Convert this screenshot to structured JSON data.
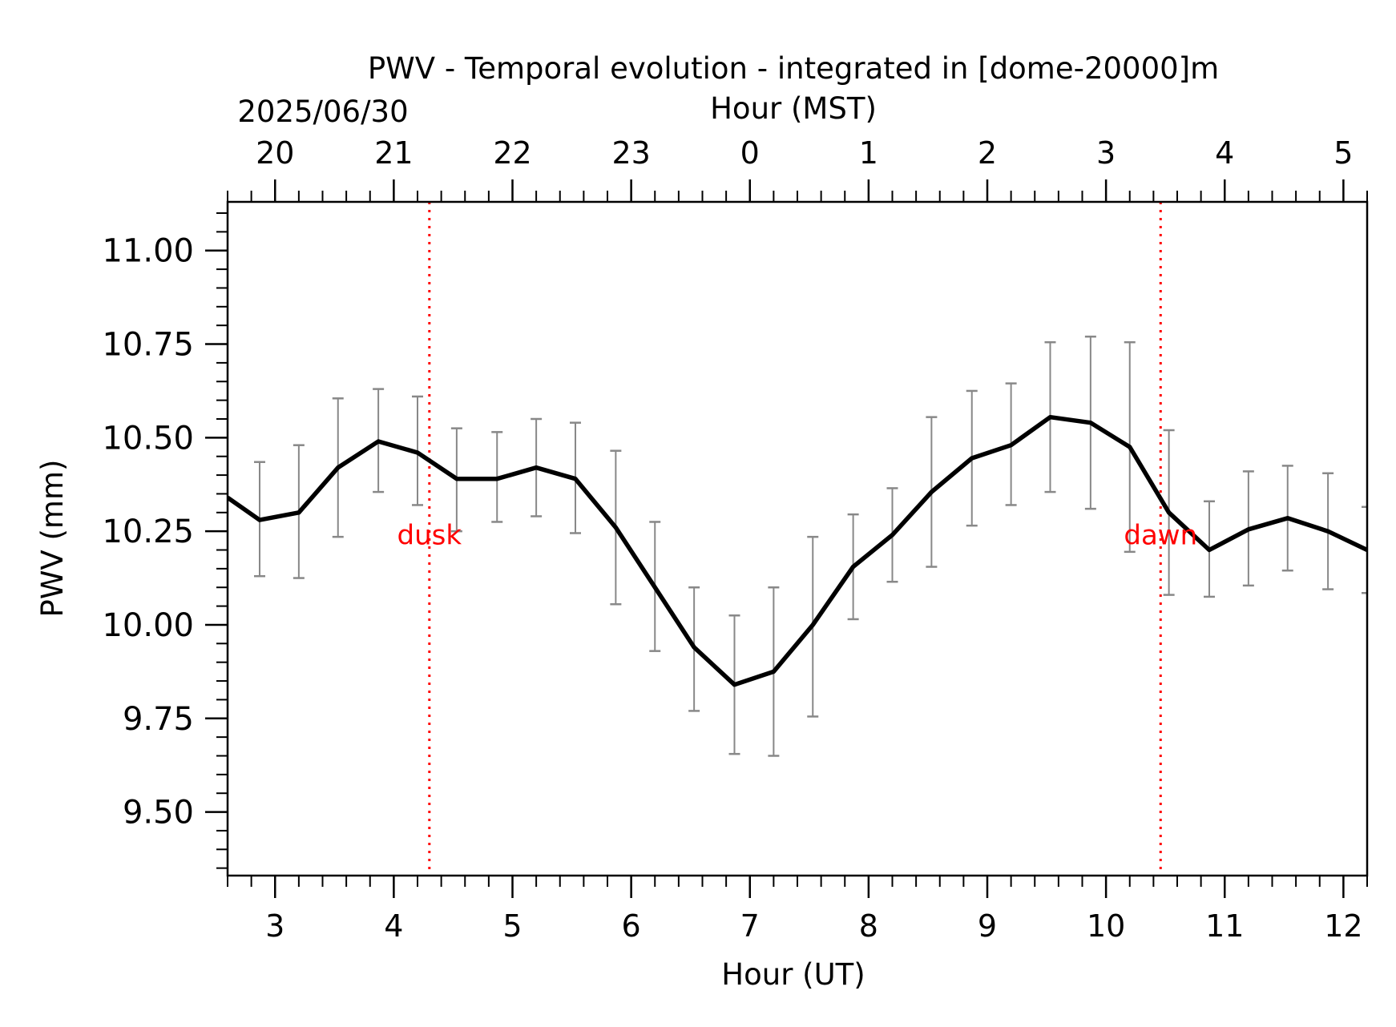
{
  "chart_data": {
    "type": "line",
    "title": "PWV - Temporal evolution - integrated in [dome-20000]m",
    "xlabel": "Hour (UT)",
    "ylabel": "PWV (mm)",
    "top_axis": {
      "label": "Hour (MST)",
      "date": "2025/06/30",
      "ticks": [
        "20",
        "21",
        "22",
        "23",
        "0",
        "1",
        "2",
        "3",
        "4",
        "5"
      ],
      "tick_positions_ut": [
        2.6,
        3.6,
        4.6,
        5.6,
        6.6,
        7.6,
        8.6,
        9.6,
        10.6,
        11.6
      ]
    },
    "xlim": [
      2.6,
      12.2
    ],
    "ylim": [
      9.33,
      11.13
    ],
    "xticks": [
      3,
      4,
      5,
      6,
      7,
      8,
      9,
      10,
      11,
      12
    ],
    "yticks": [
      "9.50",
      "9.75",
      "10.00",
      "10.25",
      "10.50",
      "10.75",
      "11.00"
    ],
    "grid": false,
    "legend": "none",
    "series": [
      {
        "color": "#000000",
        "x": [
          2.6,
          2.87,
          3.2,
          3.53,
          3.87,
          4.2,
          4.53,
          4.87,
          5.2,
          5.53,
          5.87,
          6.2,
          6.53,
          6.87,
          7.2,
          7.53,
          7.87,
          8.2,
          8.53,
          8.87,
          9.2,
          9.53,
          9.87,
          10.2,
          10.53,
          10.87,
          11.2,
          11.53,
          11.87,
          12.2
        ],
        "y": [
          10.34,
          10.28,
          10.3,
          10.42,
          10.49,
          10.46,
          10.39,
          10.39,
          10.42,
          10.39,
          10.26,
          10.1,
          9.94,
          9.84,
          9.875,
          10.0,
          10.155,
          10.24,
          10.355,
          10.445,
          10.48,
          10.555,
          10.54,
          10.475,
          10.3,
          10.2,
          10.255,
          10.285,
          10.25,
          10.2
        ],
        "yerr_low": [
          null,
          10.13,
          10.125,
          10.235,
          10.355,
          10.32,
          10.25,
          10.275,
          10.29,
          10.245,
          10.055,
          9.93,
          9.77,
          9.655,
          9.65,
          9.755,
          10.015,
          10.115,
          10.155,
          10.265,
          10.32,
          10.355,
          10.31,
          10.195,
          10.08,
          10.075,
          10.105,
          10.145,
          10.095,
          10.085
        ],
        "yerr_high": [
          null,
          10.435,
          10.48,
          10.605,
          10.63,
          10.61,
          10.525,
          10.515,
          10.55,
          10.54,
          10.465,
          10.275,
          10.1,
          10.025,
          10.1,
          10.235,
          10.295,
          10.365,
          10.555,
          10.625,
          10.645,
          10.755,
          10.77,
          10.755,
          10.52,
          10.33,
          10.41,
          10.425,
          10.405,
          10.315
        ]
      }
    ],
    "events": [
      {
        "label": "dusk",
        "x": 4.3,
        "color": "#ff0000"
      },
      {
        "label": "dawn",
        "x": 10.46,
        "color": "#ff0000"
      }
    ],
    "errorbar_color": "#888888"
  }
}
